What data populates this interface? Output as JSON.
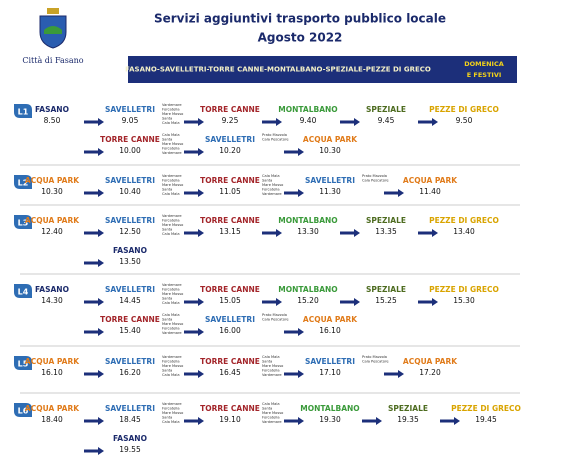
{
  "header": {
    "logo_caption": "Città di Fasano",
    "title": "Servizi aggiuntivi trasporto pubblico locale",
    "subtitle": "Agosto 2022"
  },
  "banner": {
    "route": "FASANO-SAVELLETRI-TORRE CANNE-MONTALBANO-SPEZIALE-PEZZE DI GRECO",
    "days": [
      "DOMENICA",
      "E FESTIVI"
    ]
  },
  "lines": [
    {
      "label": "L1",
      "rows": [
        {
          "start": 0,
          "items": [
            {
              "stop": "FASANO",
              "time": "8.50",
              "color": "#1b2a6b"
            },
            {
              "stop": "SAVELLETRI",
              "time": "9.05",
              "color": "#2e6db4"
            },
            {
              "note": [
                "Vardemare",
                "Forcatella",
                "Mare Mosso",
                "Santa",
                "Cala Mala"
              ]
            },
            {
              "stop": "TORRE CANNE",
              "time": "9.25",
              "color": "#a3252a"
            },
            {
              "stop": "MONTALBANO",
              "time": "9.40",
              "color": "#3a9a3a"
            },
            {
              "stop": "SPEZIALE",
              "time": "9.45",
              "color": "#4d6b1f"
            },
            {
              "stop": "PEZZE DI GRECO",
              "time": "9.50",
              "color": "#d9a400"
            }
          ]
        },
        {
          "start": 1,
          "items": [
            {
              "stop": "TORRE CANNE",
              "time": "10.00",
              "color": "#a3252a"
            },
            {
              "note": [
                "Cala Mala",
                "Santa",
                "Mare Mosso",
                "Forcatella",
                "Vardemare"
              ]
            },
            {
              "stop": "SAVELLETRI",
              "time": "10.20",
              "color": "#2e6db4"
            },
            {
              "note": [
                "Prato Mazzola",
                "Cala Pescatore"
              ]
            },
            {
              "stop": "ACQUA PARK",
              "time": "10.30",
              "color": "#e07b1a"
            }
          ]
        }
      ]
    },
    {
      "label": "L2",
      "rows": [
        {
          "start": 0,
          "items": [
            {
              "stop": "ACQUA PARK",
              "time": "10.30",
              "color": "#e07b1a"
            },
            {
              "stop": "SAVELLETRI",
              "time": "10.40",
              "color": "#2e6db4"
            },
            {
              "note": [
                "Vardemare",
                "Forcatella",
                "Mare Mosso",
                "Santa",
                "Cala Mala"
              ]
            },
            {
              "stop": "TORRE CANNE",
              "time": "11.05",
              "color": "#a3252a"
            },
            {
              "note": [
                "Cala Mala",
                "Santa",
                "Mare Mosso",
                "Forcatella",
                "Vardemare"
              ]
            },
            {
              "stop": "SAVELLETRI",
              "time": "11.30",
              "color": "#2e6db4"
            },
            {
              "note": [
                "Prato Mazzola",
                "Cala Pescatore"
              ]
            },
            {
              "stop": "ACQUA PARK",
              "time": "11.40",
              "color": "#e07b1a"
            }
          ]
        }
      ]
    },
    {
      "label": "L3",
      "rows": [
        {
          "start": 0,
          "items": [
            {
              "stop": "ACQUA PARK",
              "time": "12.40",
              "color": "#e07b1a"
            },
            {
              "stop": "SAVELLETRI",
              "time": "12.50",
              "color": "#2e6db4"
            },
            {
              "note": [
                "Vardemare",
                "Forcatella",
                "Mare Mosso",
                "Santa",
                "Cala Mala"
              ]
            },
            {
              "stop": "TORRE CANNE",
              "time": "13.15",
              "color": "#a3252a"
            },
            {
              "stop": "MONTALBANO",
              "time": "13.30",
              "color": "#3a9a3a"
            },
            {
              "stop": "SPEZIALE",
              "time": "13.35",
              "color": "#4d6b1f"
            },
            {
              "stop": "PEZZE DI GRECO",
              "time": "13.40",
              "color": "#d9a400"
            }
          ]
        },
        {
          "start": 1,
          "items": [
            {
              "stop": "FASANO",
              "time": "13.50",
              "color": "#1b2a6b"
            }
          ]
        }
      ]
    },
    {
      "label": "L4",
      "rows": [
        {
          "start": 0,
          "items": [
            {
              "stop": "FASANO",
              "time": "14.30",
              "color": "#1b2a6b"
            },
            {
              "stop": "SAVELLETRI",
              "time": "14.45",
              "color": "#2e6db4"
            },
            {
              "note": [
                "Vardemare",
                "Forcatella",
                "Mare Mosso",
                "Santa",
                "Cala Mala"
              ]
            },
            {
              "stop": "TORRE CANNE",
              "time": "15.05",
              "color": "#a3252a"
            },
            {
              "stop": "MONTALBANO",
              "time": "15.20",
              "color": "#3a9a3a"
            },
            {
              "stop": "SPEZIALE",
              "time": "15.25",
              "color": "#4d6b1f"
            },
            {
              "stop": "PEZZE DI GRECO",
              "time": "15.30",
              "color": "#d9a400"
            }
          ]
        },
        {
          "start": 1,
          "items": [
            {
              "stop": "TORRE CANNE",
              "time": "15.40",
              "color": "#a3252a"
            },
            {
              "note": [
                "Cala Mala",
                "Santa",
                "Mare Mosso",
                "Forcatella",
                "Vardemare"
              ]
            },
            {
              "stop": "SAVELLETRI",
              "time": "16.00",
              "color": "#2e6db4"
            },
            {
              "note": [
                "Prato Mazzola",
                "Cala Pescatore"
              ]
            },
            {
              "stop": "ACQUA PARK",
              "time": "16.10",
              "color": "#e07b1a"
            }
          ]
        }
      ]
    },
    {
      "label": "L5",
      "rows": [
        {
          "start": 0,
          "items": [
            {
              "stop": "ACQUA PARK",
              "time": "16.10",
              "color": "#e07b1a"
            },
            {
              "stop": "SAVELLETRI",
              "time": "16.20",
              "color": "#2e6db4"
            },
            {
              "note": [
                "Vardemare",
                "Forcatella",
                "Mare Mosso",
                "Santa",
                "Cala Mala"
              ]
            },
            {
              "stop": "TORRE CANNE",
              "time": "16.45",
              "color": "#a3252a"
            },
            {
              "note": [
                "Cala Mala",
                "Santa",
                "Mare Mosso",
                "Forcatella",
                "Vardemare"
              ]
            },
            {
              "stop": "SAVELLETRI",
              "time": "17.10",
              "color": "#2e6db4"
            },
            {
              "note": [
                "Prato Mazzola",
                "Cala Pescatore"
              ]
            },
            {
              "stop": "ACQUA PARK",
              "time": "17.20",
              "color": "#e07b1a"
            }
          ]
        }
      ]
    },
    {
      "label": "L6",
      "rows": [
        {
          "start": 0,
          "items": [
            {
              "stop": "ACQUA PARK",
              "time": "18.40",
              "color": "#e07b1a"
            },
            {
              "stop": "SAVELLETRI",
              "time": "18.45",
              "color": "#2e6db4"
            },
            {
              "note": [
                "Vardemare",
                "Forcatella",
                "Mare Mosso",
                "Santa",
                "Cala Mala"
              ]
            },
            {
              "stop": "TORRE CANNE",
              "time": "19.10",
              "color": "#a3252a"
            },
            {
              "note": [
                "Cala Mala",
                "Santa",
                "Mare Mosso",
                "Forcatella",
                "Vardemare"
              ]
            },
            {
              "stop": "MONTALBANO",
              "time": "19.30",
              "color": "#3a9a3a"
            },
            {
              "stop": "SPEZIALE",
              "time": "19.35",
              "color": "#4d6b1f"
            },
            {
              "stop": "PEZZE DI GRECO",
              "time": "19.45",
              "color": "#d9a400"
            }
          ]
        },
        {
          "start": 1,
          "items": [
            {
              "stop": "FASANO",
              "time": "19.55",
              "color": "#1b2a6b"
            }
          ]
        }
      ]
    }
  ]
}
